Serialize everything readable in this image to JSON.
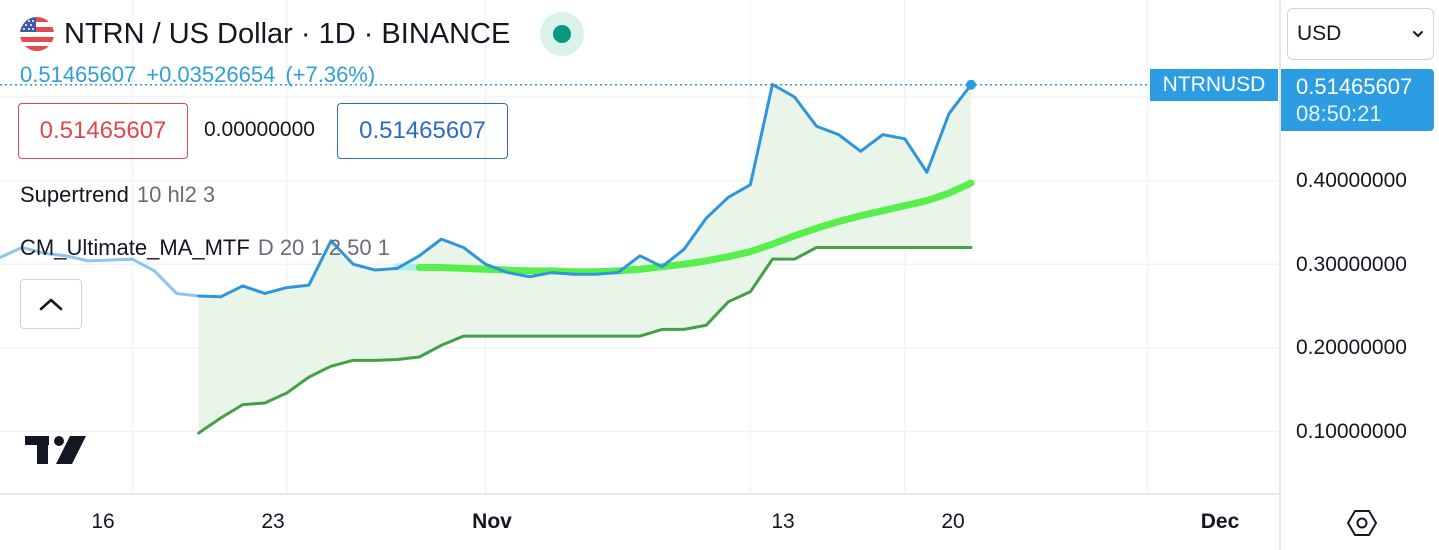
{
  "header": {
    "title": "NTRN / US Dollar · 1D · BINANCE",
    "price": "0.51465607",
    "change": "+0.03526654",
    "change_pct": "(+7.36%)",
    "status": "market-open"
  },
  "quote_boxes": {
    "sell": "0.51465607",
    "spread": "0.00000000",
    "buy": "0.51465607"
  },
  "indicators": [
    {
      "name": "Supertrend",
      "params": "10 hl2 3"
    },
    {
      "name": "CM_Ultimate_MA_MTF",
      "params": "D 20 1 2 50 1"
    }
  ],
  "currency": {
    "selected": "USD"
  },
  "price_scale": {
    "symbol_label": "NTRNUSD",
    "last_price": "0.51465607",
    "countdown": "08:50:21",
    "ticks": [
      "0.40000000",
      "0.30000000",
      "0.20000000",
      "0.10000000"
    ]
  },
  "time_scale": {
    "ticks": [
      {
        "label": "16",
        "bold": false
      },
      {
        "label": "23",
        "bold": false
      },
      {
        "label": "Nov",
        "bold": true
      },
      {
        "label": "13",
        "bold": false
      },
      {
        "label": "20",
        "bold": false
      },
      {
        "label": "Dec",
        "bold": true
      }
    ]
  },
  "icons": {
    "logo": "tradingview-logo",
    "collapse": "chevron-up-icon",
    "settings": "settings-hexagon-icon",
    "flag": "us-flag-icon"
  },
  "colors": {
    "price_line": "#2f96db",
    "supertrend_up": "#43a047",
    "supertrend_fill": "#e9f5e8",
    "ma_up": "#57ef4b",
    "ma_down": "#e96060",
    "accent": "#2d9de3"
  },
  "chart_data": {
    "type": "line",
    "y_scale": "linear",
    "ylim": [
      0.05,
      0.58
    ],
    "x_range": [
      "2023-10-10",
      "2023-12-07"
    ],
    "grid": true,
    "series": [
      {
        "name": "NTRNUSD",
        "x": [
          "2023-10-10",
          "2023-10-11",
          "2023-10-12",
          "2023-10-13",
          "2023-10-14",
          "2023-10-15",
          "2023-10-16",
          "2023-10-17",
          "2023-10-18",
          "2023-10-19",
          "2023-10-20",
          "2023-10-21",
          "2023-10-22",
          "2023-10-23",
          "2023-10-24",
          "2023-10-25",
          "2023-10-26",
          "2023-10-27",
          "2023-10-28",
          "2023-10-29",
          "2023-10-30",
          "2023-10-31",
          "2023-11-01",
          "2023-11-02",
          "2023-11-03",
          "2023-11-04",
          "2023-11-05",
          "2023-11-06",
          "2023-11-07",
          "2023-11-08",
          "2023-11-09",
          "2023-11-10",
          "2023-11-11",
          "2023-11-12",
          "2023-11-13",
          "2023-11-14",
          "2023-11-15",
          "2023-11-16",
          "2023-11-17",
          "2023-11-18",
          "2023-11-19",
          "2023-11-20",
          "2023-11-21",
          "2023-11-22",
          "2023-11-23"
        ],
        "values": [
          0.308,
          0.32,
          0.313,
          0.31,
          0.304,
          0.305,
          0.306,
          0.292,
          0.265,
          0.262,
          0.261,
          0.274,
          0.265,
          0.272,
          0.275,
          0.328,
          0.3,
          0.293,
          0.295,
          0.31,
          0.33,
          0.32,
          0.3,
          0.29,
          0.285,
          0.29,
          0.288,
          0.288,
          0.29,
          0.31,
          0.297,
          0.318,
          0.355,
          0.38,
          0.395,
          0.515,
          0.5,
          0.465,
          0.455,
          0.435,
          0.455,
          0.45,
          0.41,
          0.48,
          0.51465607
        ]
      },
      {
        "name": "Supertrend",
        "x": [
          "2023-10-19",
          "2023-10-20",
          "2023-10-21",
          "2023-10-22",
          "2023-10-23",
          "2023-10-24",
          "2023-10-25",
          "2023-10-26",
          "2023-10-27",
          "2023-10-28",
          "2023-10-29",
          "2023-10-30",
          "2023-10-31",
          "2023-11-01",
          "2023-11-02",
          "2023-11-03",
          "2023-11-04",
          "2023-11-05",
          "2023-11-06",
          "2023-11-07",
          "2023-11-08",
          "2023-11-09",
          "2023-11-10",
          "2023-11-11",
          "2023-11-12",
          "2023-11-13",
          "2023-11-14",
          "2023-11-15",
          "2023-11-16",
          "2023-11-17",
          "2023-11-18",
          "2023-11-19",
          "2023-11-20",
          "2023-11-21",
          "2023-11-22",
          "2023-11-23"
        ],
        "values": [
          0.098,
          0.116,
          0.132,
          0.134,
          0.146,
          0.165,
          0.178,
          0.185,
          0.185,
          0.186,
          0.189,
          0.203,
          0.214,
          0.214,
          0.214,
          0.214,
          0.214,
          0.214,
          0.214,
          0.214,
          0.214,
          0.222,
          0.222,
          0.227,
          0.255,
          0.267,
          0.306,
          0.306,
          0.32,
          0.32,
          0.32,
          0.32,
          0.32,
          0.32,
          0.32,
          0.32
        ]
      },
      {
        "name": "CM_Ultimate_MA_MTF",
        "x": [
          "2023-10-28",
          "2023-10-29",
          "2023-10-30",
          "2023-10-31",
          "2023-11-01",
          "2023-11-02",
          "2023-11-03",
          "2023-11-04",
          "2023-11-05",
          "2023-11-06",
          "2023-11-07",
          "2023-11-08",
          "2023-11-09",
          "2023-11-10",
          "2023-11-11",
          "2023-11-12",
          "2023-11-13",
          "2023-11-14",
          "2023-11-15",
          "2023-11-16",
          "2023-11-17",
          "2023-11-18",
          "2023-11-19",
          "2023-11-20",
          "2023-11-21",
          "2023-11-22",
          "2023-11-23"
        ],
        "values": [
          0.297,
          0.296,
          0.296,
          0.295,
          0.294,
          0.293,
          0.292,
          0.292,
          0.291,
          0.291,
          0.292,
          0.294,
          0.297,
          0.3,
          0.304,
          0.309,
          0.315,
          0.324,
          0.334,
          0.343,
          0.351,
          0.358,
          0.364,
          0.37,
          0.376,
          0.385,
          0.397
        ]
      }
    ]
  }
}
